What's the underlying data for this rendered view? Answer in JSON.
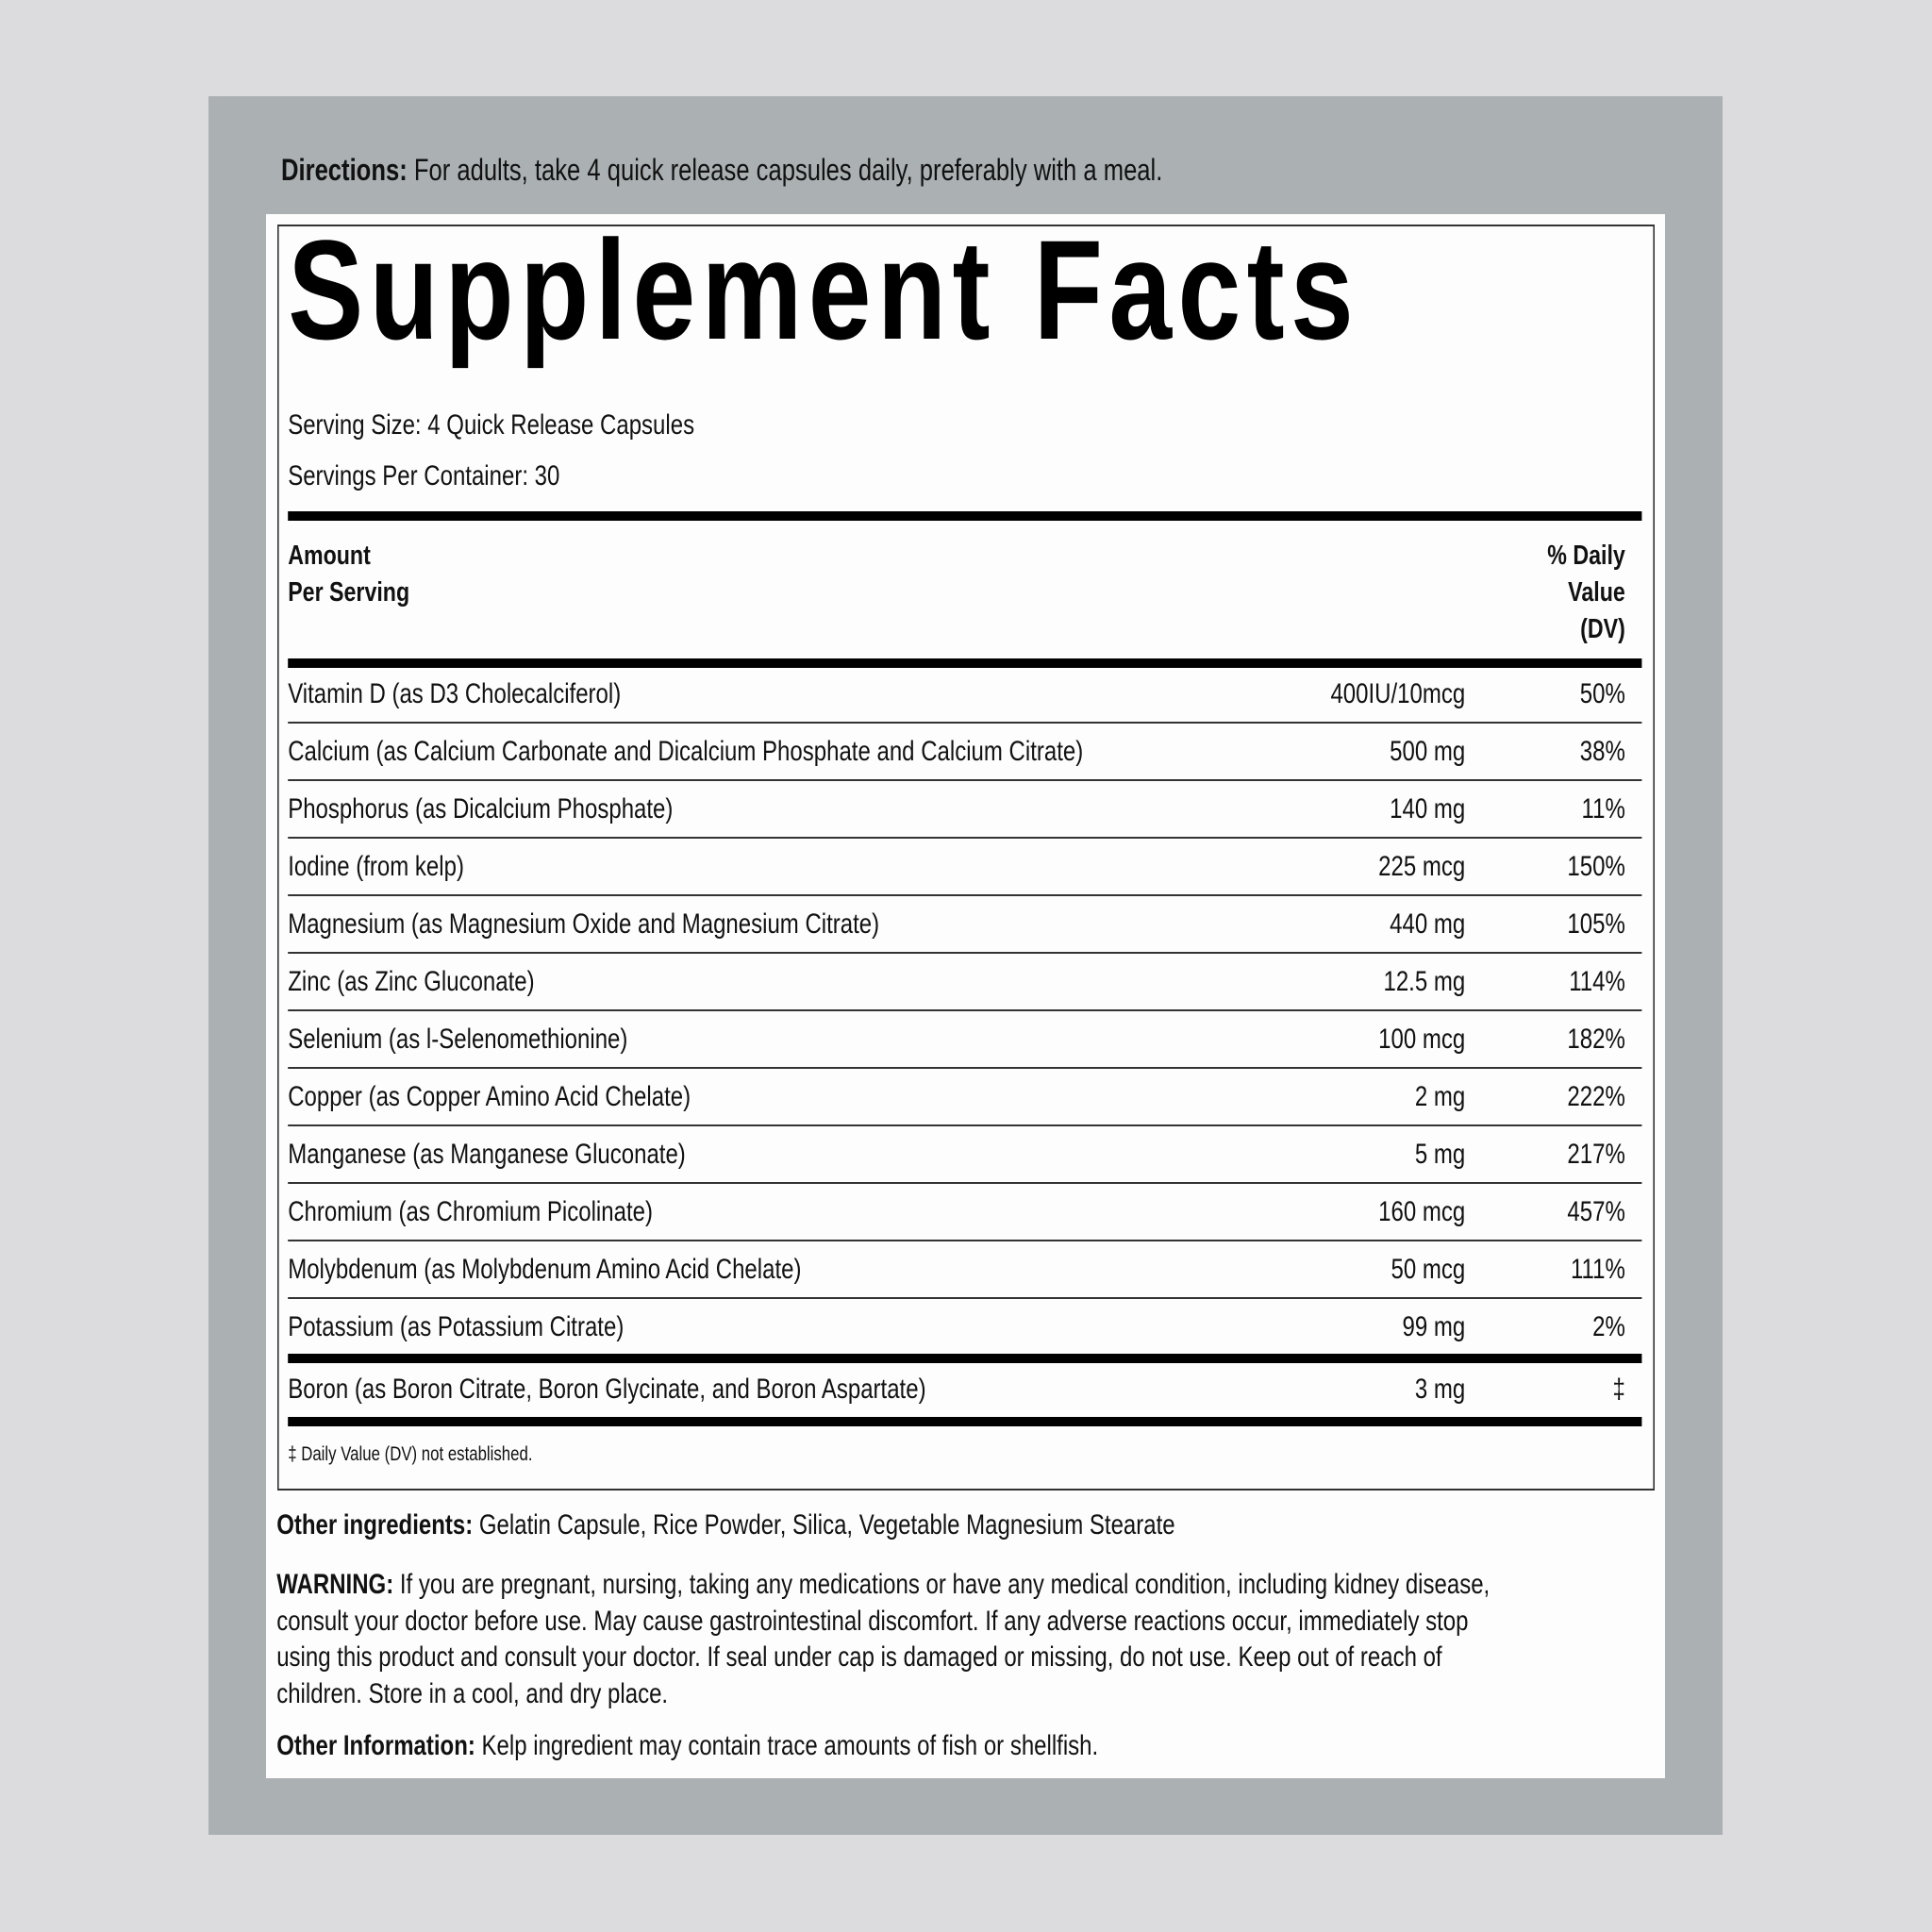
{
  "colors": {
    "background": "#dcdbde",
    "panel": "#abb0b3",
    "label": "#fdfdfd",
    "text": "#111111"
  },
  "directions": {
    "label": "Directions:",
    "text": " For adults, take 4 quick release capsules daily, preferably with a meal."
  },
  "title": "Supplement Facts",
  "serving_size": "Serving Size: 4 Quick Release Capsules",
  "servings_per_container": "Servings Per Container: 30",
  "header": {
    "amount_line1": "Amount",
    "amount_line2": "Per Serving",
    "dv_line1": "% Daily",
    "dv_line2": "Value",
    "dv_line3": "(DV)"
  },
  "rows": [
    {
      "name": "Vitamin D (as D3 Cholecalciferol)",
      "amount": "400IU/10mcg",
      "dv": "50%"
    },
    {
      "name": "Calcium (as Calcium Carbonate and Dicalcium Phosphate and Calcium Citrate)",
      "amount": "500 mg",
      "dv": "38%"
    },
    {
      "name": "Phosphorus (as Dicalcium Phosphate)",
      "amount": "140 mg",
      "dv": "11%"
    },
    {
      "name": "Iodine (from kelp)",
      "amount": "225 mcg",
      "dv": "150%"
    },
    {
      "name": "Magnesium (as Magnesium Oxide and Magnesium Citrate)",
      "amount": "440 mg",
      "dv": "105%"
    },
    {
      "name": "Zinc (as Zinc Gluconate)",
      "amount": "12.5 mg",
      "dv": "114%"
    },
    {
      "name": "Selenium (as l-Selenomethionine)",
      "amount": "100 mcg",
      "dv": "182%"
    },
    {
      "name": "Copper (as Copper Amino Acid Chelate)",
      "amount": "2 mg",
      "dv": "222%"
    },
    {
      "name": "Manganese (as Manganese Gluconate)",
      "amount": "5 mg",
      "dv": "217%"
    },
    {
      "name": "Chromium (as Chromium Picolinate)",
      "amount": "160 mcg",
      "dv": "457%"
    },
    {
      "name": "Molybdenum (as Molybdenum Amino Acid Chelate)",
      "amount": "50 mcg",
      "dv": "111%"
    },
    {
      "name": "Potassium (as Potassium Citrate)",
      "amount": "99 mg",
      "dv": "2%"
    }
  ],
  "boron": {
    "name": "Boron (as Boron Citrate, Boron Glycinate, and Boron Aspartate)",
    "amount": "3 mg",
    "dv": "‡"
  },
  "footnote": "‡ Daily Value (DV) not established.",
  "other_ingredients": {
    "label": "Other ingredients:",
    "text": " Gelatin Capsule, Rice Powder, Silica, Vegetable Magnesium Stearate"
  },
  "warning": {
    "label": "WARNING:",
    "lines": [
      " If you are pregnant, nursing, taking any medications or have any medical condition, including kidney disease,",
      "consult your doctor before use. May cause gastrointestinal discomfort. If any adverse reactions occur, immediately stop",
      "using this product and consult your doctor. If seal under cap is damaged or missing, do not use. Keep out of reach of",
      "children. Store in a cool, and dry place."
    ]
  },
  "other_information": {
    "label": "Other Information:",
    "text": " Kelp ingredient may contain trace amounts of fish or shellfish."
  }
}
